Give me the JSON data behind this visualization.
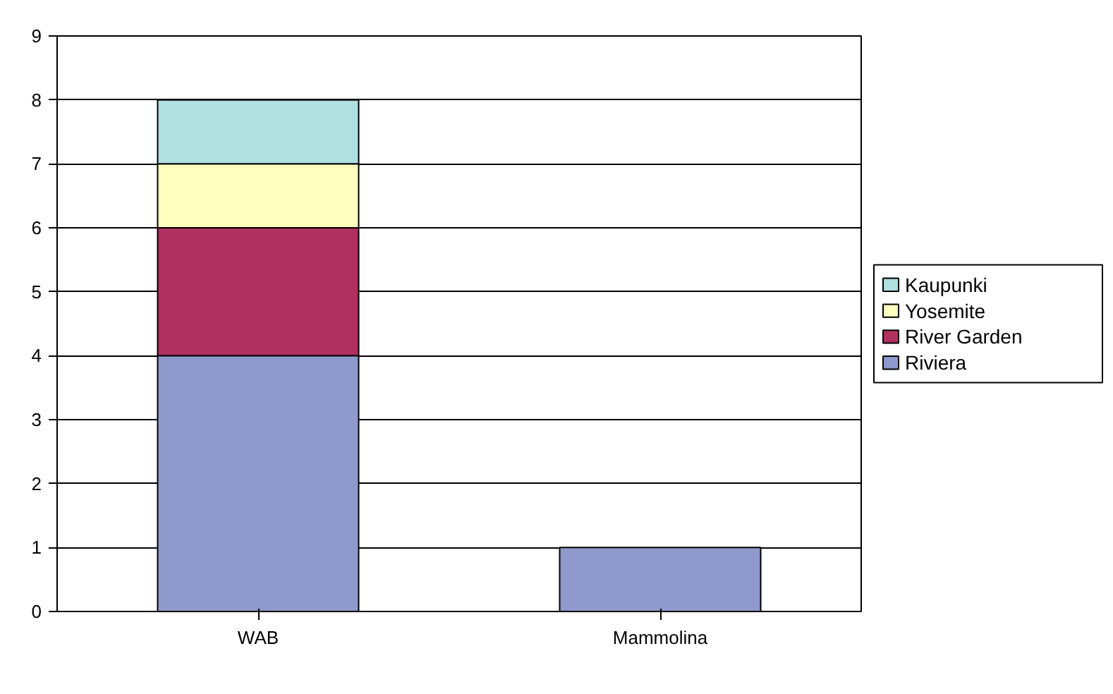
{
  "chart_data": {
    "type": "bar",
    "stacked": true,
    "categories": [
      "WAB",
      "Mammolina"
    ],
    "series": [
      {
        "name": "Riviera",
        "color": "#9099cc",
        "values": [
          4,
          1
        ]
      },
      {
        "name": "River Garden",
        "color": "#b03060",
        "values": [
          2,
          0
        ]
      },
      {
        "name": "Yosemite",
        "color": "#ffffc0",
        "values": [
          1,
          0
        ]
      },
      {
        "name": "Kaupunki",
        "color": "#b0e0e0",
        "values": [
          1,
          0
        ]
      }
    ],
    "ylim": [
      0,
      9
    ],
    "yticks": [
      0,
      1,
      2,
      3,
      4,
      5,
      6,
      7,
      8,
      9
    ],
    "grid": "y",
    "legend": "right"
  }
}
